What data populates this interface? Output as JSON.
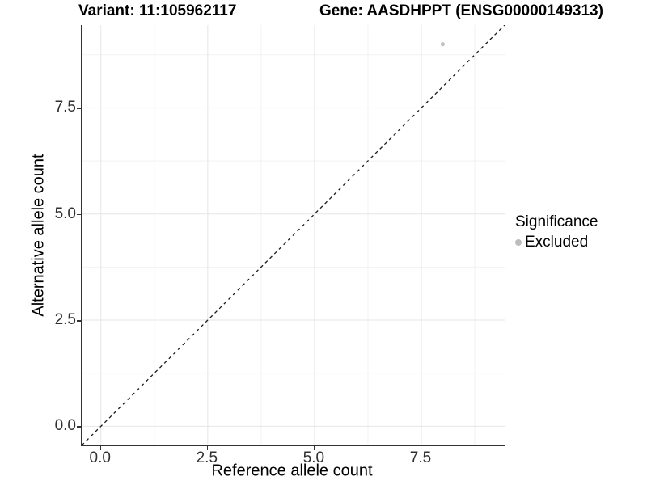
{
  "chart_data": {
    "type": "scatter",
    "title_left": "Variant: 11:105962117",
    "title_right": "Gene: AASDHPPT (ENSG00000149313)",
    "xlabel": "Reference allele count",
    "ylabel": "Alternative allele count",
    "xlim": [
      -0.45,
      9.45
    ],
    "ylim": [
      -0.45,
      9.45
    ],
    "major_ticks": [
      0,
      2.5,
      5,
      7.5
    ],
    "minor_ticks": [
      1.25,
      3.75,
      6.25,
      8.75
    ],
    "tick_labels": [
      "0.0",
      "2.5",
      "5.0",
      "7.5"
    ],
    "grid": true,
    "points": [
      {
        "x": 8,
        "y": 9,
        "series": "Excluded"
      }
    ],
    "reference_line": {
      "type": "identity",
      "slope": 1,
      "intercept": 0,
      "style": "dashed"
    },
    "legend": {
      "title": "Significance",
      "position": "right",
      "entries": [
        {
          "label": "Excluded",
          "marker": "dot"
        }
      ]
    },
    "colors": {
      "point": "#c3c3c3",
      "legend_dot": "#bdbdbd",
      "grid_major": "#e6e6e6",
      "grid_minor": "#f2f2f2",
      "axis_line": "#333333",
      "dashed_line": "#1a1a1a",
      "tick_label": "#303030"
    }
  }
}
